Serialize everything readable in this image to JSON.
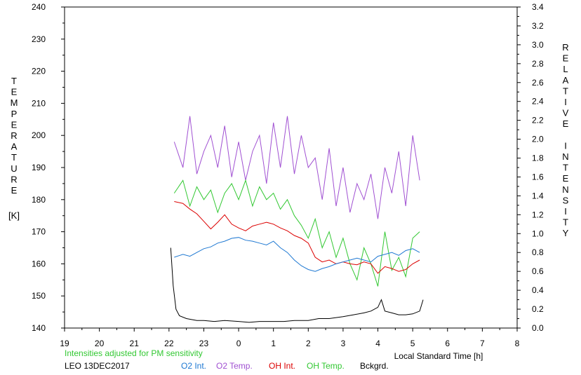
{
  "chart_data": {
    "type": "line",
    "x_ticks": [
      "19",
      "20",
      "21",
      "22",
      "23",
      "0",
      "1",
      "2",
      "3",
      "4",
      "5",
      "6",
      "7",
      "8"
    ],
    "xlabel": "Local Standard Time [h]",
    "ylabel_left": "TEMPERATURE",
    "ylabel_left_unit": "[K]",
    "ylabel_right": "RELATIVE INTENSITY",
    "ylim_left": [
      140,
      240
    ],
    "ylim_right": [
      0.0,
      3.4
    ],
    "y_ticks_left": [
      "140",
      "150",
      "160",
      "170",
      "180",
      "190",
      "200",
      "210",
      "220",
      "230",
      "240"
    ],
    "y_ticks_right": [
      "0.0",
      "0.2",
      "0.4",
      "0.6",
      "0.8",
      "1.0",
      "1.2",
      "1.4",
      "1.6",
      "1.8",
      "2.0",
      "2.2",
      "2.4",
      "2.6",
      "2.8",
      "3.0",
      "3.2",
      "3.4"
    ],
    "note": "Intensities adjusted for PM sensitivity",
    "station": "LEO 13DEC2017",
    "colors": {
      "o2_int": "#1e78d2",
      "o2_temp": "#a050d2",
      "oh_int": "#dc0000",
      "oh_temp": "#32c832",
      "bckgrd": "#000000",
      "note": "#32c832"
    },
    "series": [
      {
        "name": "O2 Temp.",
        "axis": "left",
        "x": [
          22.15,
          22.4,
          22.6,
          22.8,
          23.0,
          23.2,
          23.4,
          23.6,
          23.8,
          24.0,
          24.2,
          24.4,
          24.6,
          24.8,
          25.0,
          25.2,
          25.4,
          25.6,
          25.8,
          26.0,
          26.2,
          26.4,
          26.6,
          26.8,
          27.0,
          27.2,
          27.4,
          27.6,
          27.8,
          28.0,
          28.2,
          28.4,
          28.6,
          28.8,
          29.0,
          29.2
        ],
        "values": [
          198,
          190,
          206,
          188,
          195,
          200,
          190,
          203,
          187,
          198,
          186,
          195,
          200,
          185,
          204,
          190,
          206,
          188,
          200,
          190,
          193,
          180,
          196,
          178,
          190,
          176,
          185,
          180,
          188,
          174,
          190,
          182,
          195,
          178,
          200,
          186
        ]
      },
      {
        "name": "OH Temp.",
        "axis": "left",
        "x": [
          22.15,
          22.4,
          22.6,
          22.8,
          23.0,
          23.2,
          23.4,
          23.6,
          23.8,
          24.0,
          24.2,
          24.4,
          24.6,
          24.8,
          25.0,
          25.2,
          25.4,
          25.6,
          25.8,
          26.0,
          26.2,
          26.4,
          26.6,
          26.8,
          27.0,
          27.2,
          27.4,
          27.6,
          27.8,
          28.0,
          28.2,
          28.4,
          28.6,
          28.8,
          29.0,
          29.2
        ],
        "values": [
          182,
          186,
          178,
          184,
          180,
          183,
          176,
          182,
          185,
          180,
          186,
          178,
          184,
          180,
          182,
          177,
          180,
          175,
          172,
          168,
          174,
          165,
          170,
          162,
          168,
          160,
          155,
          165,
          160,
          153,
          170,
          158,
          162,
          156,
          168,
          170
        ]
      },
      {
        "name": "OH Int.",
        "axis": "right",
        "x": [
          22.15,
          22.4,
          22.6,
          22.8,
          23.0,
          23.2,
          23.4,
          23.6,
          23.8,
          24.0,
          24.2,
          24.4,
          24.6,
          24.8,
          25.0,
          25.2,
          25.4,
          25.6,
          25.8,
          26.0,
          26.2,
          26.4,
          26.6,
          26.8,
          27.0,
          27.2,
          27.4,
          27.6,
          27.8,
          28.0,
          28.2,
          28.4,
          28.6,
          28.8,
          29.0,
          29.2
        ],
        "values": [
          1.34,
          1.32,
          1.26,
          1.21,
          1.13,
          1.05,
          1.12,
          1.2,
          1.1,
          1.06,
          1.03,
          1.08,
          1.1,
          1.12,
          1.1,
          1.06,
          1.03,
          0.98,
          0.95,
          0.9,
          0.75,
          0.7,
          0.72,
          0.68,
          0.7,
          0.68,
          0.67,
          0.7,
          0.68,
          0.58,
          0.65,
          0.63,
          0.6,
          0.62,
          0.68,
          0.72
        ]
      },
      {
        "name": "O2 Int.",
        "axis": "right",
        "x": [
          22.15,
          22.4,
          22.6,
          22.8,
          23.0,
          23.2,
          23.4,
          23.6,
          23.8,
          24.0,
          24.2,
          24.4,
          24.6,
          24.8,
          25.0,
          25.2,
          25.4,
          25.6,
          25.8,
          26.0,
          26.2,
          26.4,
          26.6,
          26.8,
          27.0,
          27.2,
          27.4,
          27.6,
          27.8,
          28.0,
          28.2,
          28.4,
          28.6,
          28.8,
          29.0,
          29.2
        ],
        "values": [
          0.75,
          0.78,
          0.76,
          0.8,
          0.84,
          0.86,
          0.9,
          0.92,
          0.95,
          0.96,
          0.93,
          0.92,
          0.9,
          0.88,
          0.92,
          0.85,
          0.8,
          0.72,
          0.66,
          0.62,
          0.6,
          0.63,
          0.65,
          0.68,
          0.7,
          0.72,
          0.74,
          0.72,
          0.7,
          0.76,
          0.78,
          0.8,
          0.77,
          0.82,
          0.84,
          0.8
        ]
      },
      {
        "name": "Bckgrd.",
        "axis": "right",
        "x": [
          22.05,
          22.12,
          22.2,
          22.3,
          22.5,
          22.8,
          23.0,
          23.3,
          23.6,
          24.0,
          24.3,
          24.6,
          25.0,
          25.3,
          25.6,
          26.0,
          26.3,
          26.6,
          27.0,
          27.3,
          27.6,
          27.8,
          28.0,
          28.1,
          28.2,
          28.4,
          28.6,
          28.8,
          29.0,
          29.2,
          29.3
        ],
        "values": [
          0.85,
          0.45,
          0.2,
          0.13,
          0.1,
          0.08,
          0.08,
          0.07,
          0.08,
          0.07,
          0.06,
          0.07,
          0.07,
          0.07,
          0.08,
          0.08,
          0.1,
          0.1,
          0.12,
          0.14,
          0.16,
          0.18,
          0.22,
          0.3,
          0.18,
          0.16,
          0.14,
          0.14,
          0.15,
          0.18,
          0.3
        ]
      }
    ]
  }
}
